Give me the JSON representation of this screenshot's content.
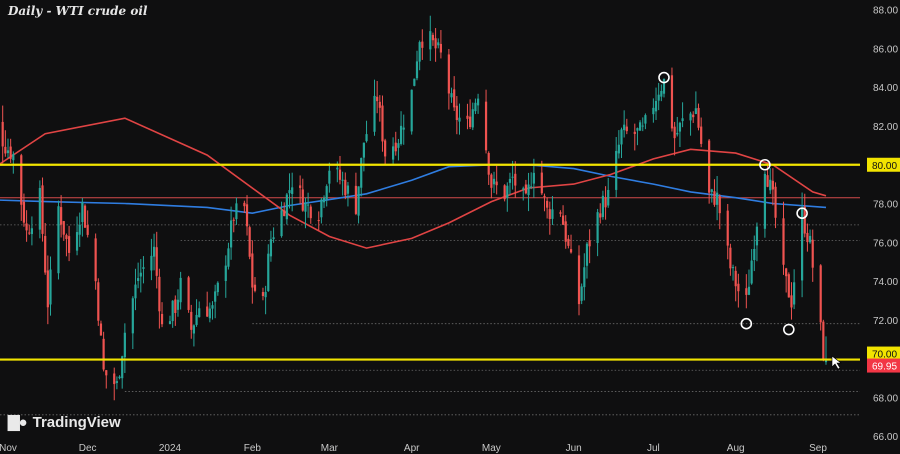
{
  "chart_data": {
    "type": "candlestick",
    "title": "Daily - WTI crude oil",
    "brand": "TradingView",
    "brand_icon": "tradingview-logo-icon",
    "colors": {
      "background": "#0f0f10",
      "up": "#26a69a",
      "down": "#ef5350",
      "ma_red": "#e04444",
      "ma_blue": "#2f7de1",
      "level_line": "#f2e400",
      "grid_dotted": "#6a6a6a",
      "last_price_bg": "#f23645",
      "axis_text": "#c8c8c8"
    },
    "ylim": [
      65.8,
      88.5
    ],
    "xlabels": [
      "Nov",
      "Dec",
      "2024",
      "Feb",
      "Mar",
      "Apr",
      "May",
      "Jun",
      "Jul",
      "Aug",
      "Sep"
    ],
    "yticks": [
      "66.00",
      "68.00",
      "70.00",
      "72.00",
      "74.00",
      "76.00",
      "78.00",
      "80.00",
      "82.00",
      "84.00",
      "86.00",
      "88.00"
    ],
    "yticks_values": [
      66,
      68,
      70,
      72,
      74,
      76,
      78,
      80,
      82,
      84,
      86,
      88
    ],
    "level_lines": [
      {
        "value": 80.0,
        "label": "80.00"
      },
      {
        "value": 69.95,
        "label": "70.00"
      }
    ],
    "last_price": {
      "value": 69.95,
      "label": "69.95"
    },
    "reference_lines": [
      {
        "value": 78.3,
        "style": "solid",
        "color": "red"
      },
      {
        "value": 76.9,
        "style": "dotted"
      },
      {
        "value": 76.1,
        "style": "dotted",
        "from_date": "2024-01-05"
      },
      {
        "value": 71.8,
        "style": "dotted",
        "from_date": "2024-02-01"
      },
      {
        "value": 69.4,
        "style": "dotted",
        "from_date": "2024-01-05"
      },
      {
        "value": 68.3,
        "style": "dotted",
        "from_date": "2023-12-15"
      },
      {
        "value": 67.1,
        "style": "dotted"
      }
    ],
    "swing_markers": [
      {
        "date": "2024-07-05",
        "value": 84.5
      },
      {
        "date": "2024-08-12",
        "value": 80.0
      },
      {
        "date": "2024-08-26",
        "value": 77.5
      },
      {
        "date": "2024-08-05",
        "value": 71.8
      },
      {
        "date": "2024-08-21",
        "value": 71.5
      }
    ],
    "close_path": [
      [
        "2023-10-23",
        84.0
      ],
      [
        "2023-10-26",
        82.5
      ],
      [
        "2023-10-31",
        81.0
      ],
      [
        "2023-11-03",
        80.5
      ],
      [
        "2023-11-08",
        76.5
      ],
      [
        "2023-11-13",
        78.3
      ],
      [
        "2023-11-16",
        72.9
      ],
      [
        "2023-11-20",
        77.8
      ],
      [
        "2023-11-24",
        75.5
      ],
      [
        "2023-11-29",
        77.9
      ],
      [
        "2023-12-04",
        74.0
      ],
      [
        "2023-12-07",
        69.3
      ],
      [
        "2023-12-12",
        68.6
      ],
      [
        "2023-12-15",
        71.4
      ],
      [
        "2023-12-20",
        74.2
      ],
      [
        "2023-12-26",
        75.6
      ],
      [
        "2023-12-29",
        71.6
      ],
      [
        "2024-01-03",
        72.7
      ],
      [
        "2024-01-05",
        73.8
      ],
      [
        "2024-01-09",
        71.5
      ],
      [
        "2024-01-12",
        72.7
      ],
      [
        "2024-01-17",
        72.5
      ],
      [
        "2024-01-22",
        75.2
      ],
      [
        "2024-01-25",
        77.4
      ],
      [
        "2024-01-29",
        77.8
      ],
      [
        "2024-02-01",
        73.8
      ],
      [
        "2024-02-05",
        72.8
      ],
      [
        "2024-02-08",
        76.2
      ],
      [
        "2024-02-13",
        77.9
      ],
      [
        "2024-02-16",
        79.2
      ],
      [
        "2024-02-21",
        77.9
      ],
      [
        "2024-02-26",
        77.6
      ],
      [
        "2024-03-01",
        79.9
      ],
      [
        "2024-03-06",
        79.1
      ],
      [
        "2024-03-11",
        77.9
      ],
      [
        "2024-03-14",
        81.2
      ],
      [
        "2024-03-19",
        83.5
      ],
      [
        "2024-03-22",
        80.6
      ],
      [
        "2024-03-27",
        81.4
      ],
      [
        "2024-04-01",
        83.7
      ],
      [
        "2024-04-04",
        86.6
      ],
      [
        "2024-04-08",
        86.4
      ],
      [
        "2024-04-12",
        85.6
      ],
      [
        "2024-04-17",
        82.6
      ],
      [
        "2024-04-22",
        82.0
      ],
      [
        "2024-04-26",
        83.8
      ],
      [
        "2024-05-01",
        79.0
      ],
      [
        "2024-05-06",
        78.5
      ],
      [
        "2024-05-09",
        79.3
      ],
      [
        "2024-05-14",
        78.0
      ],
      [
        "2024-05-17",
        80.0
      ],
      [
        "2024-05-22",
        77.6
      ],
      [
        "2024-05-27",
        77.7
      ],
      [
        "2024-06-03",
        72.9
      ],
      [
        "2024-06-06",
        75.6
      ],
      [
        "2024-06-11",
        77.8
      ],
      [
        "2024-06-14",
        78.4
      ],
      [
        "2024-06-19",
        81.6
      ],
      [
        "2024-06-24",
        81.6
      ],
      [
        "2024-06-27",
        81.7
      ],
      [
        "2024-07-03",
        83.9
      ],
      [
        "2024-07-05",
        84.3
      ],
      [
        "2024-07-09",
        81.4
      ],
      [
        "2024-07-12",
        82.2
      ],
      [
        "2024-07-17",
        82.9
      ],
      [
        "2024-07-22",
        78.4
      ],
      [
        "2024-07-25",
        78.3
      ],
      [
        "2024-07-30",
        74.7
      ],
      [
        "2024-08-02",
        73.5
      ],
      [
        "2024-08-05",
        72.9
      ],
      [
        "2024-08-08",
        76.2
      ],
      [
        "2024-08-12",
        80.0
      ],
      [
        "2024-08-15",
        78.2
      ],
      [
        "2024-08-19",
        74.3
      ],
      [
        "2024-08-22",
        73.0
      ],
      [
        "2024-08-26",
        77.4
      ],
      [
        "2024-08-29",
        75.9
      ],
      [
        "2024-09-03",
        70.3
      ],
      [
        "2024-09-04",
        69.95
      ]
    ],
    "ma_red": [
      [
        "2023-10-23",
        79.5
      ],
      [
        "2023-11-15",
        81.6
      ],
      [
        "2023-12-15",
        82.4
      ],
      [
        "2024-01-15",
        80.5
      ],
      [
        "2024-02-15",
        77.4
      ],
      [
        "2024-03-01",
        76.3
      ],
      [
        "2024-03-15",
        75.7
      ],
      [
        "2024-04-01",
        76.2
      ],
      [
        "2024-04-15",
        77.0
      ],
      [
        "2024-05-01",
        78.1
      ],
      [
        "2024-05-15",
        78.8
      ],
      [
        "2024-06-01",
        79.0
      ],
      [
        "2024-06-15",
        79.5
      ],
      [
        "2024-07-01",
        80.3
      ],
      [
        "2024-07-15",
        80.8
      ],
      [
        "2024-08-01",
        80.6
      ],
      [
        "2024-08-15",
        80.0
      ],
      [
        "2024-08-30",
        78.6
      ],
      [
        "2024-09-04",
        78.4
      ]
    ],
    "ma_blue": [
      [
        "2023-10-23",
        78.2
      ],
      [
        "2023-11-15",
        78.1
      ],
      [
        "2023-12-15",
        78.0
      ],
      [
        "2024-01-15",
        77.8
      ],
      [
        "2024-02-01",
        77.5
      ],
      [
        "2024-02-15",
        77.9
      ],
      [
        "2024-03-01",
        78.2
      ],
      [
        "2024-03-15",
        78.5
      ],
      [
        "2024-04-01",
        79.2
      ],
      [
        "2024-04-15",
        79.9
      ],
      [
        "2024-05-01",
        80.0
      ],
      [
        "2024-05-15",
        80.0
      ],
      [
        "2024-06-01",
        79.8
      ],
      [
        "2024-06-15",
        79.4
      ],
      [
        "2024-07-01",
        79.0
      ],
      [
        "2024-07-15",
        78.6
      ],
      [
        "2024-08-01",
        78.3
      ],
      [
        "2024-08-15",
        78.0
      ],
      [
        "2024-09-04",
        77.8
      ]
    ]
  }
}
